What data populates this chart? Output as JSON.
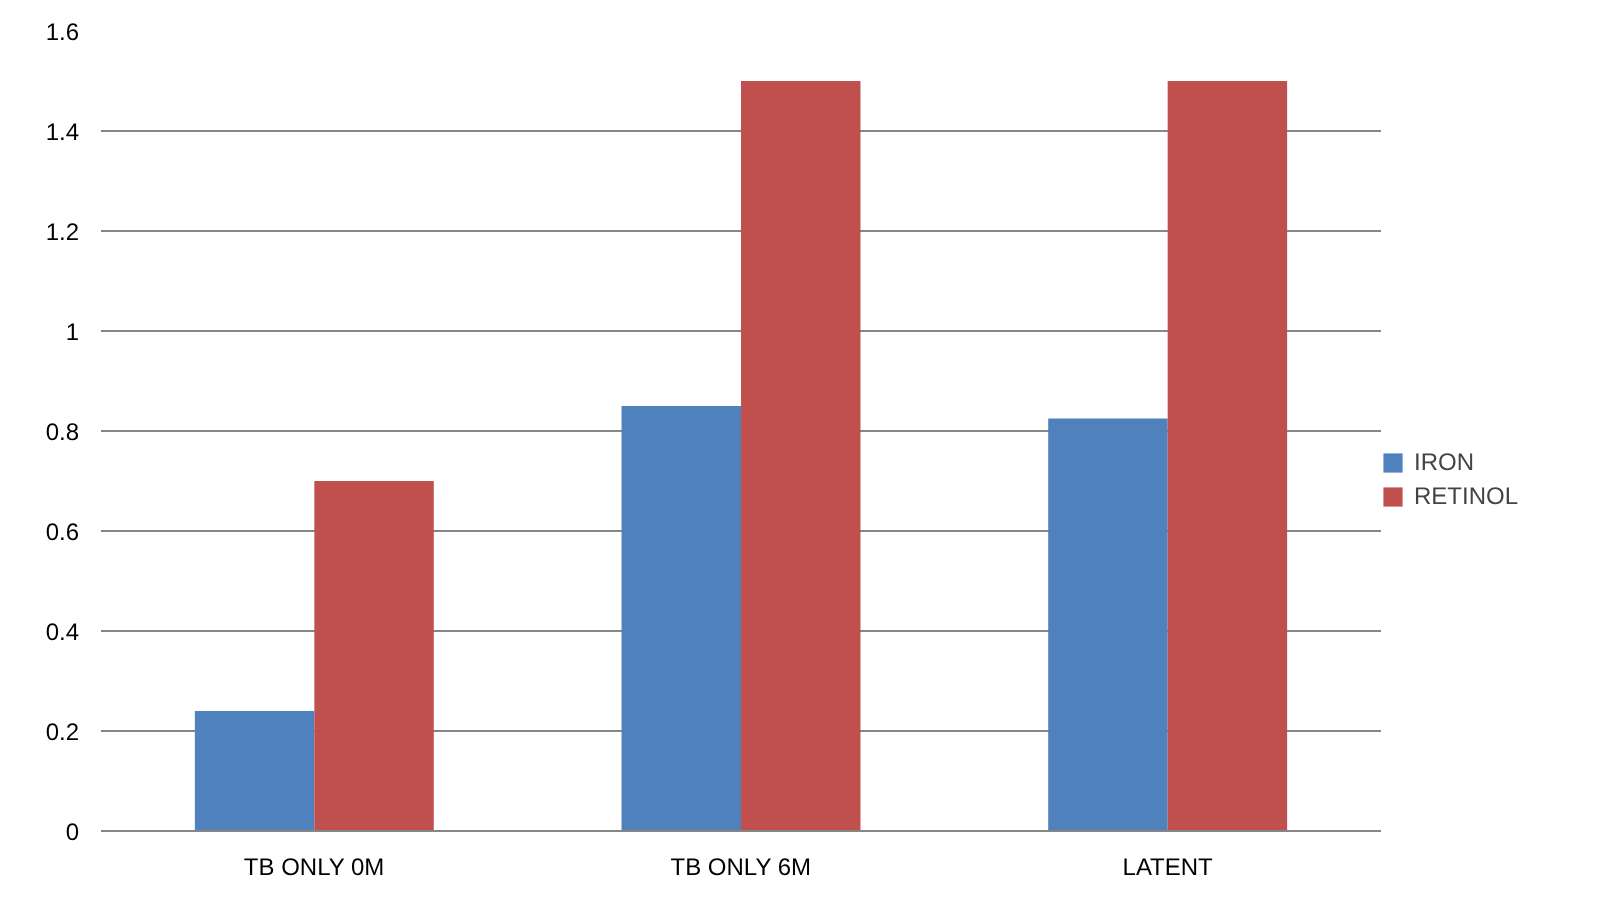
{
  "chart_data": {
    "type": "bar",
    "categories": [
      "TB ONLY 0M",
      "TB ONLY 6M",
      "LATENT"
    ],
    "series": [
      {
        "name": "IRON",
        "color": "#4f81bd",
        "values": [
          0.24,
          0.85,
          0.825
        ]
      },
      {
        "name": "RETINOL",
        "color": "#c0504d",
        "values": [
          0.7,
          1.5,
          1.5
        ]
      }
    ],
    "ylim": [
      0,
      1.6
    ],
    "yticks": [
      0,
      0.2,
      0.4,
      0.6,
      0.8,
      1,
      1.2,
      1.4,
      1.6
    ],
    "grid": "y",
    "legend": "right"
  }
}
